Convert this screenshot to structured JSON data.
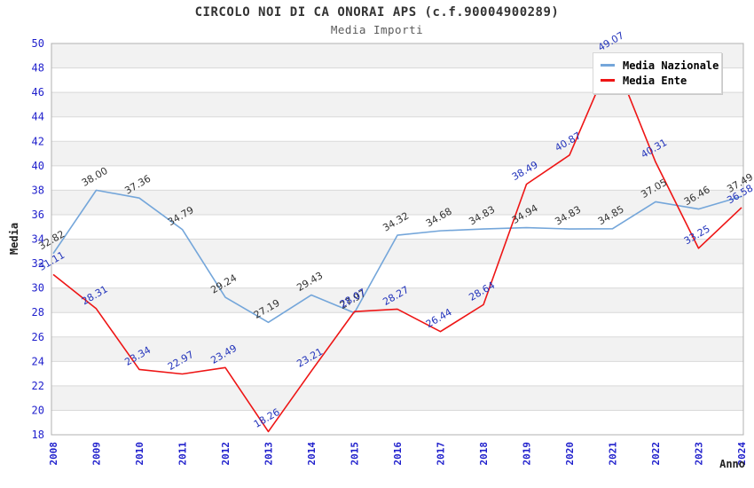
{
  "window": {
    "background": "#ffffff"
  },
  "chart_data": {
    "type": "line",
    "title": "CIRCOLO NOI DI CA ONORAI APS (c.f.90004900289)",
    "subtitle": "Media Importi",
    "xlabel": "Anno",
    "ylabel": "Media",
    "ylim": [
      18,
      50
    ],
    "ytick_step": 2,
    "ytick_labels": [
      18,
      20,
      22,
      24,
      26,
      28,
      30,
      32,
      34,
      36,
      38,
      40,
      42,
      44,
      46,
      48,
      50
    ],
    "categories": [
      "2008",
      "2009",
      "2010",
      "2011",
      "2012",
      "2013",
      "2014",
      "2015",
      "2016",
      "2017",
      "2018",
      "2019",
      "2020",
      "2021",
      "2022",
      "2023",
      "2024"
    ],
    "series": [
      {
        "name": "Media Nazionale",
        "color": "#74a6da",
        "label_color": "#333333",
        "values": [
          32.82,
          38.0,
          37.36,
          34.79,
          29.24,
          27.19,
          29.43,
          27.97,
          34.32,
          34.68,
          34.83,
          34.94,
          34.83,
          34.85,
          37.05,
          36.46,
          37.49
        ]
      },
      {
        "name": "Media Ente",
        "color": "#ee1515",
        "label_color": "#2233bb",
        "values": [
          31.11,
          28.31,
          23.34,
          22.97,
          23.49,
          18.26,
          23.21,
          28.07,
          28.27,
          26.44,
          28.64,
          38.49,
          40.87,
          49.07,
          40.31,
          33.25,
          36.58
        ]
      }
    ],
    "value_label_format": "0.00",
    "legend_position": "top-right",
    "grid": "horizontal",
    "band_color": "#f2f2f2",
    "gridline_color": "#d9d9d9",
    "plot_border_color": "#b0b0b0",
    "tick_label_color": "#1f1fcc"
  }
}
